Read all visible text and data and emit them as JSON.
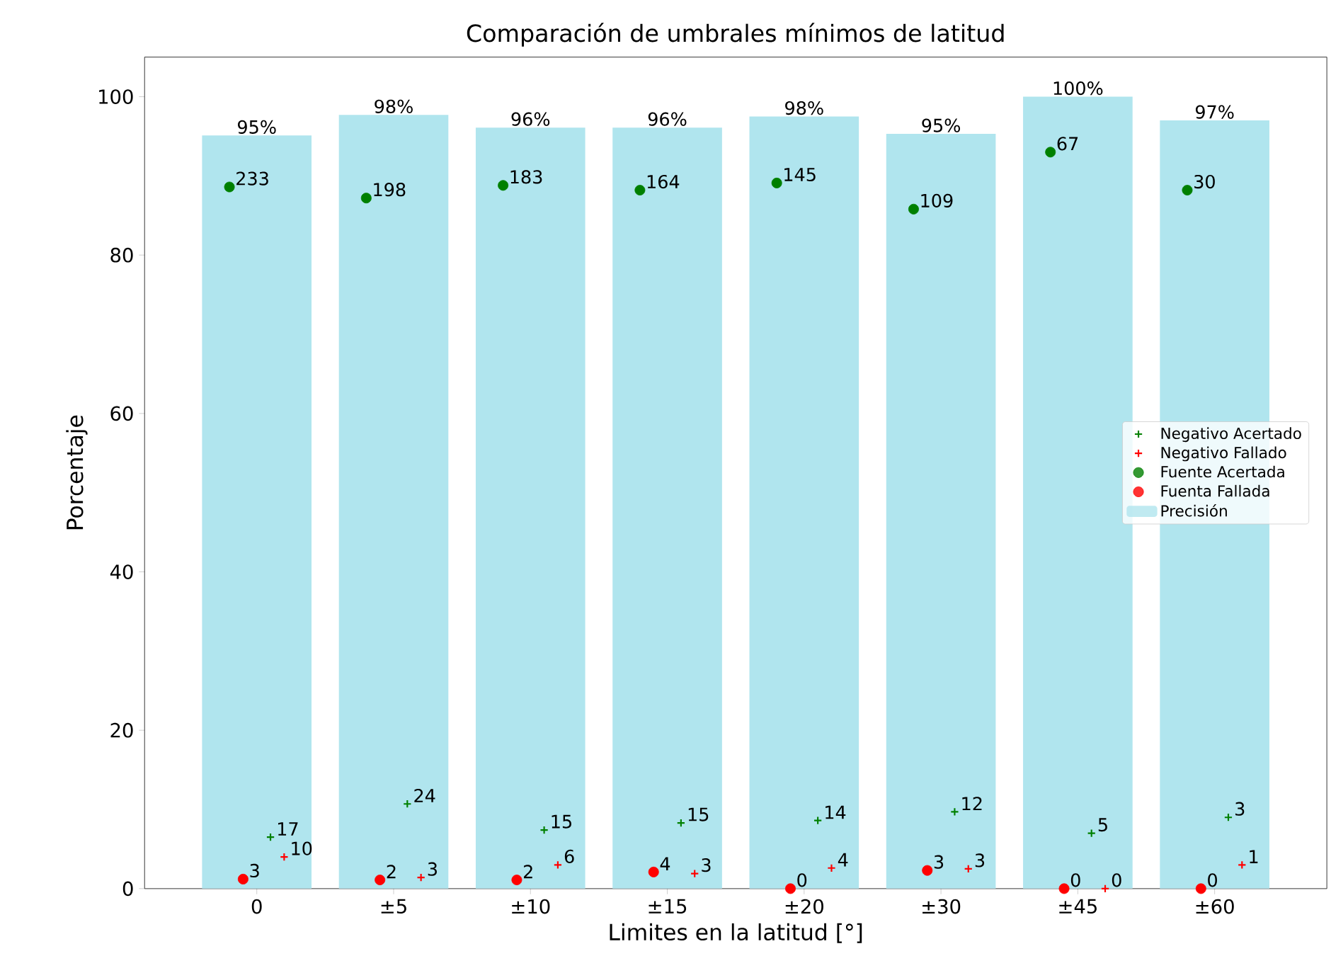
{
  "chart_data": {
    "type": "bar",
    "title": "Comparación de umbrales mínimos de latitud",
    "xlabel": "Limites en la latitud [°]",
    "ylabel": "Porcentaje",
    "categories": [
      "0",
      "±5",
      "±10",
      "±15",
      "±20",
      "±30",
      "±45",
      "±60"
    ],
    "series": [
      {
        "name": "Negativo Acertado",
        "type": "scatter",
        "marker": "cross",
        "color": "#008000",
        "values": [
          6.5,
          10.7,
          7.4,
          8.3,
          8.6,
          9.7,
          7.0,
          9.0
        ]
      },
      {
        "name": "Negativo Fallado",
        "type": "scatter",
        "marker": "cross",
        "color": "#ff0000",
        "values": [
          4.0,
          1.4,
          3.0,
          1.9,
          2.6,
          2.5,
          0,
          3.0
        ]
      },
      {
        "name": "Fuente Acertada",
        "type": "scatter",
        "marker": "circle",
        "color": "#008000",
        "values": [
          88.6,
          87.2,
          88.8,
          88.2,
          89.1,
          85.8,
          93.0,
          88.2
        ]
      },
      {
        "name": "Fuenta Fallada",
        "type": "scatter",
        "marker": "circle",
        "color": "#ff0000",
        "values": [
          1.2,
          1.1,
          1.1,
          2.1,
          0,
          2.3,
          0,
          0
        ]
      },
      {
        "name": "Precisión",
        "color": "#b0e5ee",
        "values": [
          95.1,
          97.7,
          96.1,
          96.1,
          97.5,
          95.3,
          100,
          97.0
        ],
        "value_labels": [
          "95%",
          "98%",
          "96%",
          "96%",
          "98%",
          "95%",
          "100%",
          "97%"
        ]
      }
    ],
    "annotations": [
      "17",
      "24",
      "15",
      "15",
      "14",
      "12",
      "5",
      "3",
      "10",
      "3",
      "6",
      "3",
      "4",
      "3",
      "0",
      "1",
      "233",
      "198",
      "183",
      "164",
      "145",
      "109",
      "67",
      "30",
      "3",
      "2",
      "2",
      "4",
      "0",
      "3",
      "0",
      "0"
    ],
    "ylim": [
      0,
      105
    ],
    "yticks": [
      0,
      20,
      40,
      60,
      80,
      100
    ],
    "legend": "right",
    "grid": false
  }
}
